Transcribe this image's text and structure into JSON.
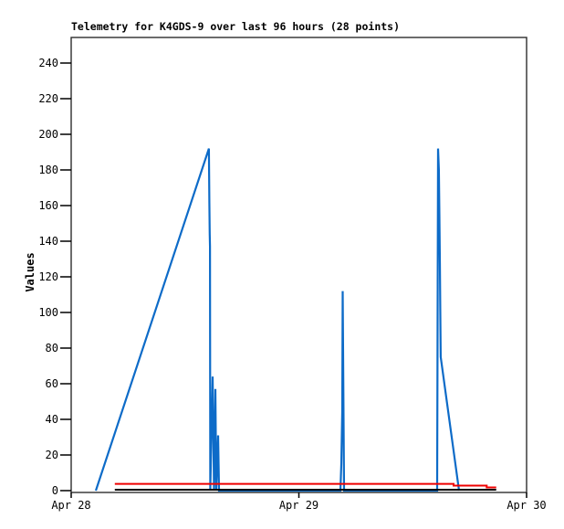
{
  "page": {
    "background_color": "#ffffff"
  },
  "chart_data": {
    "type": "line",
    "title": "Telemetry for K4GDS-9 over last 96 hours (28 points)",
    "ylabel": "Values",
    "xlabel": "",
    "grid": false,
    "legend": "none",
    "frame_color": "#2e2e2e",
    "tick_color": "#000000",
    "xlim_hours": [
      0,
      48
    ],
    "ylim": [
      -1.03,
      254.36
    ],
    "y_ticks": [
      0,
      20,
      40,
      60,
      80,
      100,
      120,
      140,
      160,
      180,
      200,
      220,
      240
    ],
    "x_ticks": [
      {
        "hours": 0,
        "label": "Apr 28"
      },
      {
        "hours": 24,
        "label": "Apr 29"
      },
      {
        "hours": 48,
        "label": "Apr 30"
      }
    ],
    "series": [
      {
        "id": "blue-series",
        "color": "#0d6bc8",
        "width": 2.2,
        "points": [
          [
            2.6,
            0
          ],
          [
            14.52,
            192
          ],
          [
            14.56,
            162
          ],
          [
            14.6,
            144
          ],
          [
            14.63,
            137
          ],
          [
            14.66,
            0
          ],
          [
            14.91,
            64
          ],
          [
            15.05,
            0
          ],
          [
            15.2,
            57
          ],
          [
            15.29,
            0
          ],
          [
            15.49,
            31
          ],
          [
            15.58,
            0
          ],
          [
            28.38,
            0
          ],
          [
            28.47,
            15
          ],
          [
            28.57,
            44
          ],
          [
            28.62,
            112
          ],
          [
            28.76,
            0
          ],
          [
            38.57,
            0
          ],
          [
            38.67,
            192
          ],
          [
            38.76,
            180
          ],
          [
            38.81,
            153
          ],
          [
            38.86,
            128
          ],
          [
            38.9,
            103
          ],
          [
            38.95,
            75
          ],
          [
            40.88,
            0
          ]
        ]
      },
      {
        "id": "red-series",
        "color": "#ee0000",
        "width": 2,
        "points": [
          [
            4.6,
            3.8
          ],
          [
            40.3,
            3.8
          ],
          [
            40.3,
            2.8
          ],
          [
            43.8,
            2.8
          ],
          [
            43.8,
            1.8
          ],
          [
            44.8,
            1.8
          ]
        ]
      },
      {
        "id": "black-series",
        "color": "#000000",
        "width": 2,
        "points": [
          [
            4.6,
            0.5
          ],
          [
            44.8,
            0.5
          ]
        ]
      }
    ]
  }
}
